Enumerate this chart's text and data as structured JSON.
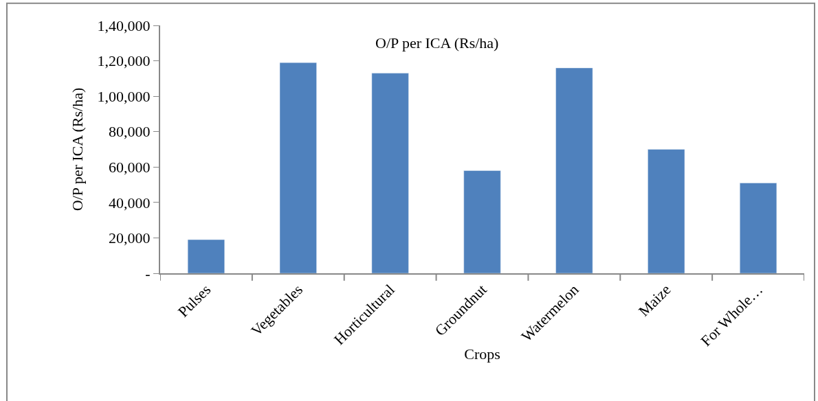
{
  "chart_data": {
    "type": "bar",
    "title": "O/P per ICA (Rs/ha)",
    "xlabel": "Crops",
    "ylabel": "O/P per ICA (Rs/ha)",
    "categories": [
      "Pulses",
      "Vegetables",
      "Horticultural",
      "Groundnut",
      "Watermelon",
      "Maize",
      "For Whole…"
    ],
    "values": [
      19000,
      119000,
      113000,
      58000,
      116000,
      70000,
      51000
    ],
    "color": "#4f81bd",
    "ylim": [
      0,
      140000
    ],
    "yticks": [
      {
        "value": 0,
        "label": "-"
      },
      {
        "value": 20000,
        "label": "20,000"
      },
      {
        "value": 40000,
        "label": "40,000"
      },
      {
        "value": 60000,
        "label": "60,000"
      },
      {
        "value": 80000,
        "label": "80,000"
      },
      {
        "value": 100000,
        "label": "1,00,000"
      },
      {
        "value": 120000,
        "label": "1,20,000"
      },
      {
        "value": 140000,
        "label": "1,40,000"
      }
    ]
  }
}
